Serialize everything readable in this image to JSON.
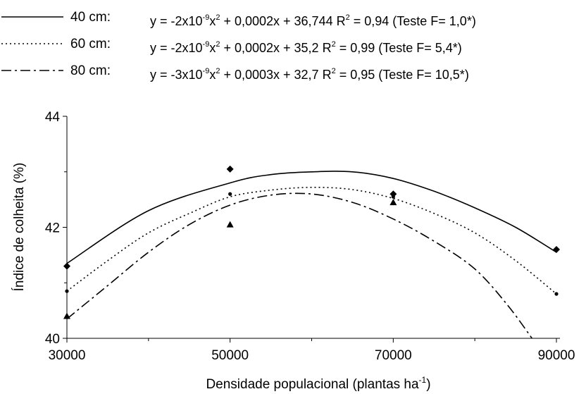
{
  "chart_data": {
    "type": "line",
    "xlabel": "Densidade populacional (plantas ha",
    "xlabel_sup": "-1",
    "xlabel_close": ")",
    "ylabel": "Índice de colheita (%)",
    "xlim": [
      30000,
      90000
    ],
    "ylim": [
      40,
      44
    ],
    "xticks": [
      {
        "value": 30000,
        "label": "30000"
      },
      {
        "value": 50000,
        "label": "50000"
      },
      {
        "value": 70000,
        "label": "70000"
      },
      {
        "value": 90000,
        "label": "90000"
      }
    ],
    "yticks": [
      {
        "value": 40,
        "label": "40"
      },
      {
        "value": 42,
        "label": "42"
      },
      {
        "value": 44,
        "label": "44"
      }
    ],
    "grid": false,
    "legend_position": "top",
    "series": [
      {
        "name": "40 cm:",
        "style": "solid",
        "marker": "diamond",
        "equation": {
          "y_prefix": "y = -2x10",
          "exp": "-9",
          "x_part": "x",
          "sq": "2",
          "rest": " + 0,0002x + 36,744 R",
          "r_sq": "2",
          "tail": " = 0,94 (Teste F= 1,0*)"
        },
        "points": [
          [
            30000,
            41.3
          ],
          [
            50000,
            43.05
          ],
          [
            70000,
            42.6
          ],
          [
            90000,
            41.6
          ]
        ],
        "curve": [
          [
            30000,
            41.35
          ],
          [
            40000,
            42.3
          ],
          [
            50000,
            42.8
          ],
          [
            55000,
            42.95
          ],
          [
            60000,
            43.0
          ],
          [
            65000,
            43.0
          ],
          [
            70000,
            42.88
          ],
          [
            75000,
            42.65
          ],
          [
            80000,
            42.35
          ],
          [
            85000,
            42.0
          ],
          [
            90000,
            41.55
          ]
        ]
      },
      {
        "name": "60 cm:",
        "style": "dotted",
        "marker": "circle",
        "equation": {
          "y_prefix": "y = -2x10",
          "exp": "-9",
          "x_part": "x",
          "sq": "2",
          "rest": " + 0,0002x + 35,2 R",
          "r_sq": "2",
          "tail": " = 0,99 (Teste F= 5,4*)"
        },
        "points": [
          [
            30000,
            40.85
          ],
          [
            50000,
            42.6
          ],
          [
            70000,
            42.55
          ],
          [
            90000,
            40.8
          ]
        ],
        "curve": [
          [
            30000,
            40.85
          ],
          [
            35000,
            41.4
          ],
          [
            40000,
            41.9
          ],
          [
            45000,
            42.25
          ],
          [
            50000,
            42.55
          ],
          [
            55000,
            42.67
          ],
          [
            60000,
            42.72
          ],
          [
            65000,
            42.68
          ],
          [
            70000,
            42.52
          ],
          [
            75000,
            42.25
          ],
          [
            80000,
            41.9
          ],
          [
            85000,
            41.4
          ],
          [
            90000,
            40.8
          ]
        ]
      },
      {
        "name": "80 cm:",
        "style": "dash-dot",
        "marker": "triangle",
        "equation": {
          "y_prefix": "y = -3x10",
          "exp": "-9",
          "x_part": "x",
          "sq": "2",
          "rest": " + 0,0003x + 32,7 R",
          "r_sq": "2",
          "tail": " = 0,95 (Teste F= 10,5*)"
        },
        "points": [
          [
            30000,
            40.4
          ],
          [
            50000,
            42.05
          ],
          [
            70000,
            42.45
          ]
        ],
        "curve": [
          [
            30000,
            40.35
          ],
          [
            35000,
            40.95
          ],
          [
            40000,
            41.55
          ],
          [
            45000,
            42.05
          ],
          [
            50000,
            42.4
          ],
          [
            55000,
            42.58
          ],
          [
            60000,
            42.6
          ],
          [
            65000,
            42.45
          ],
          [
            70000,
            42.15
          ],
          [
            75000,
            41.75
          ],
          [
            80000,
            41.25
          ],
          [
            84000,
            40.6
          ],
          [
            87000,
            40.0
          ]
        ]
      }
    ]
  }
}
